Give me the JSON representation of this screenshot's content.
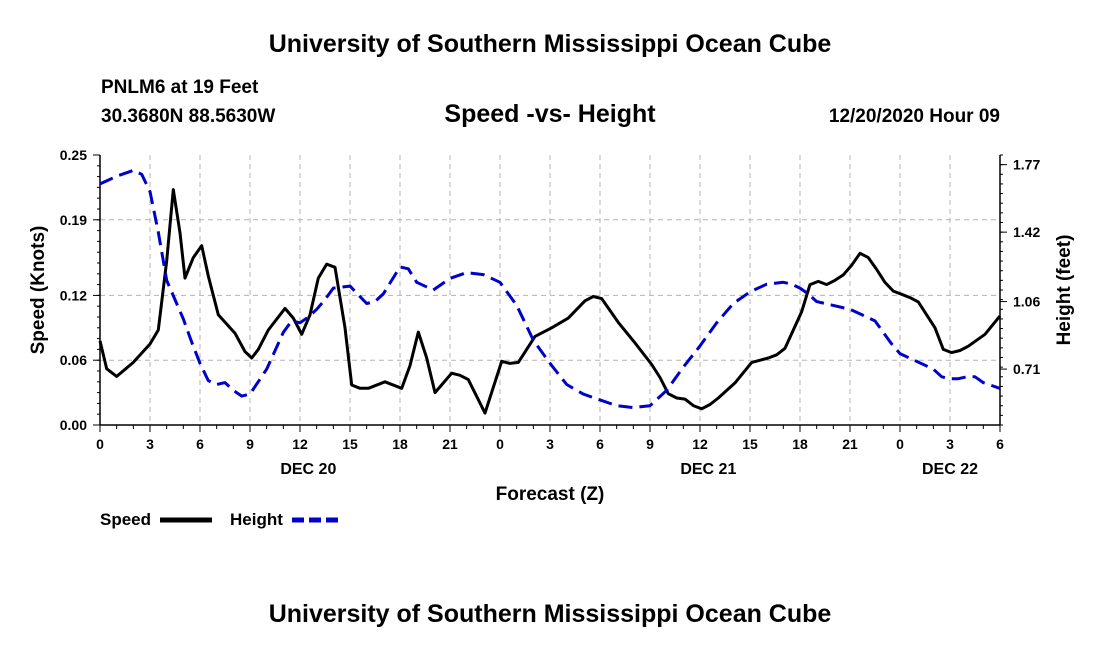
{
  "header": {
    "title": "University of Southern Mississippi Ocean Cube",
    "station": "PNLM6 at 19 Feet",
    "coords": "30.3680N 88.5630W",
    "chart_title": "Speed -vs- Height",
    "datetime": "12/20/2020 Hour 09"
  },
  "footer": {
    "title": "University of Southern Mississippi Ocean Cube"
  },
  "colors": {
    "speed": "#000000",
    "height": "#0000cc",
    "grid": "#b4b4b4"
  },
  "chart_data": {
    "type": "line",
    "title": "Speed -vs- Height",
    "xlabel": "Forecast (Z)",
    "ylabel": "Speed (Knots)",
    "y2label": "Height (feet)",
    "x_range": [
      0,
      54
    ],
    "ylim": [
      0,
      0.25
    ],
    "y2lim": [
      0.42,
      1.82
    ],
    "y_ticks": [
      0.0,
      0.06,
      0.12,
      0.19,
      0.25
    ],
    "y_tick_labels": [
      "0.00",
      "0.06",
      "0.12",
      "0.19",
      "0.25"
    ],
    "y2_ticks": [
      0.71,
      1.06,
      1.42,
      1.77
    ],
    "y2_tick_labels": [
      "0.71",
      "1.06",
      "1.42",
      "1.77"
    ],
    "x_ticks": [
      0,
      3,
      6,
      9,
      12,
      15,
      18,
      21,
      24,
      27,
      30,
      33,
      36,
      39,
      42,
      45,
      48,
      51,
      54
    ],
    "x_tick_labels": [
      "0",
      "3",
      "6",
      "9",
      "12",
      "15",
      "18",
      "21",
      "0",
      "3",
      "6",
      "9",
      "12",
      "15",
      "18",
      "21",
      "0",
      "3",
      "6"
    ],
    "date_labels": [
      {
        "x": 12.5,
        "label": "DEC 20"
      },
      {
        "x": 36.5,
        "label": "DEC 21"
      },
      {
        "x": 51,
        "label": "DEC 22"
      }
    ],
    "legend": "bottom-left",
    "series": [
      {
        "name": "Speed",
        "axis": "left",
        "style": "solid",
        "points": [
          [
            0,
            0.078
          ],
          [
            0.4,
            0.052
          ],
          [
            1,
            0.045
          ],
          [
            2,
            0.058
          ],
          [
            3,
            0.075
          ],
          [
            3.5,
            0.088
          ],
          [
            4,
            0.152
          ],
          [
            4.4,
            0.218
          ],
          [
            4.8,
            0.178
          ],
          [
            5.1,
            0.136
          ],
          [
            5.6,
            0.155
          ],
          [
            6.1,
            0.166
          ],
          [
            6.5,
            0.138
          ],
          [
            7.1,
            0.102
          ],
          [
            8.1,
            0.085
          ],
          [
            8.7,
            0.068
          ],
          [
            9.1,
            0.062
          ],
          [
            9.5,
            0.07
          ],
          [
            10.1,
            0.088
          ],
          [
            11.1,
            0.108
          ],
          [
            11.6,
            0.099
          ],
          [
            12.1,
            0.084
          ],
          [
            12.6,
            0.102
          ],
          [
            13.1,
            0.136
          ],
          [
            13.6,
            0.149
          ],
          [
            14.1,
            0.146
          ],
          [
            14.7,
            0.09
          ],
          [
            15.1,
            0.037
          ],
          [
            15.6,
            0.034
          ],
          [
            16.1,
            0.034
          ],
          [
            17.1,
            0.04
          ],
          [
            18.1,
            0.034
          ],
          [
            18.6,
            0.055
          ],
          [
            19.1,
            0.086
          ],
          [
            19.6,
            0.062
          ],
          [
            20.1,
            0.03
          ],
          [
            21.1,
            0.048
          ],
          [
            21.6,
            0.046
          ],
          [
            22.1,
            0.042
          ],
          [
            23.1,
            0.011
          ],
          [
            24.1,
            0.059
          ],
          [
            24.6,
            0.057
          ],
          [
            25.1,
            0.058
          ],
          [
            26.1,
            0.082
          ],
          [
            27.1,
            0.09
          ],
          [
            28.1,
            0.099
          ],
          [
            29.1,
            0.115
          ],
          [
            29.6,
            0.119
          ],
          [
            30.1,
            0.117
          ],
          [
            31.1,
            0.095
          ],
          [
            32.1,
            0.076
          ],
          [
            33.1,
            0.056
          ],
          [
            33.6,
            0.044
          ],
          [
            34.1,
            0.029
          ],
          [
            34.6,
            0.025
          ],
          [
            35.1,
            0.024
          ],
          [
            35.6,
            0.018
          ],
          [
            36.1,
            0.015
          ],
          [
            36.6,
            0.019
          ],
          [
            37.1,
            0.025
          ],
          [
            38.1,
            0.039
          ],
          [
            39.1,
            0.058
          ],
          [
            40.1,
            0.062
          ],
          [
            40.6,
            0.065
          ],
          [
            41.1,
            0.071
          ],
          [
            42.1,
            0.105
          ],
          [
            42.6,
            0.13
          ],
          [
            43.1,
            0.133
          ],
          [
            43.6,
            0.13
          ],
          [
            44.1,
            0.134
          ],
          [
            44.6,
            0.139
          ],
          [
            45.1,
            0.148
          ],
          [
            45.6,
            0.159
          ],
          [
            46.1,
            0.155
          ],
          [
            46.6,
            0.144
          ],
          [
            47.1,
            0.132
          ],
          [
            47.6,
            0.124
          ],
          [
            48.1,
            0.121
          ],
          [
            48.6,
            0.118
          ],
          [
            49.1,
            0.114
          ],
          [
            50.1,
            0.09
          ],
          [
            50.6,
            0.07
          ],
          [
            51.1,
            0.067
          ],
          [
            51.6,
            0.069
          ],
          [
            52.1,
            0.073
          ],
          [
            53.1,
            0.084
          ],
          [
            54,
            0.101
          ]
        ]
      },
      {
        "name": "Height",
        "axis": "right",
        "style": "dashed",
        "points": [
          [
            0,
            1.67
          ],
          [
            0.5,
            1.69
          ],
          [
            1,
            1.71
          ],
          [
            2,
            1.74
          ],
          [
            2.5,
            1.72
          ],
          [
            3,
            1.63
          ],
          [
            3.5,
            1.42
          ],
          [
            4,
            1.17
          ],
          [
            5,
            0.97
          ],
          [
            5.5,
            0.85
          ],
          [
            6,
            0.74
          ],
          [
            6.5,
            0.65
          ],
          [
            7,
            0.63
          ],
          [
            7.5,
            0.64
          ],
          [
            8,
            0.6
          ],
          [
            8.5,
            0.57
          ],
          [
            9,
            0.58
          ],
          [
            10,
            0.71
          ],
          [
            11,
            0.9
          ],
          [
            11.5,
            0.96
          ],
          [
            12,
            0.95
          ],
          [
            12.5,
            0.98
          ],
          [
            13,
            1.02
          ],
          [
            13.5,
            1.07
          ],
          [
            14,
            1.13
          ],
          [
            15,
            1.14
          ],
          [
            16,
            1.05
          ],
          [
            16.5,
            1.06
          ],
          [
            17,
            1.1
          ],
          [
            18,
            1.24
          ],
          [
            18.5,
            1.23
          ],
          [
            19,
            1.16
          ],
          [
            20,
            1.12
          ],
          [
            21,
            1.18
          ],
          [
            22,
            1.21
          ],
          [
            23,
            1.2
          ],
          [
            24,
            1.16
          ],
          [
            25,
            1.04
          ],
          [
            26,
            0.86
          ],
          [
            27,
            0.74
          ],
          [
            28,
            0.63
          ],
          [
            29,
            0.58
          ],
          [
            30,
            0.55
          ],
          [
            31,
            0.52
          ],
          [
            32,
            0.51
          ],
          [
            33,
            0.52
          ],
          [
            34,
            0.6
          ],
          [
            35,
            0.72
          ],
          [
            36,
            0.83
          ],
          [
            37,
            0.95
          ],
          [
            38,
            1.05
          ],
          [
            39,
            1.11
          ],
          [
            40,
            1.15
          ],
          [
            41,
            1.16
          ],
          [
            41.5,
            1.15
          ],
          [
            42,
            1.13
          ],
          [
            42.5,
            1.1
          ],
          [
            43,
            1.06
          ],
          [
            43.5,
            1.05
          ],
          [
            44,
            1.04
          ],
          [
            45,
            1.02
          ],
          [
            46,
            0.98
          ],
          [
            46.5,
            0.96
          ],
          [
            47,
            0.9
          ],
          [
            47.5,
            0.84
          ],
          [
            48,
            0.79
          ],
          [
            49,
            0.75
          ],
          [
            50,
            0.71
          ],
          [
            50.5,
            0.67
          ],
          [
            51,
            0.66
          ],
          [
            51.5,
            0.66
          ],
          [
            52,
            0.67
          ],
          [
            52.5,
            0.67
          ],
          [
            53,
            0.64
          ],
          [
            54,
            0.61
          ]
        ]
      }
    ]
  }
}
